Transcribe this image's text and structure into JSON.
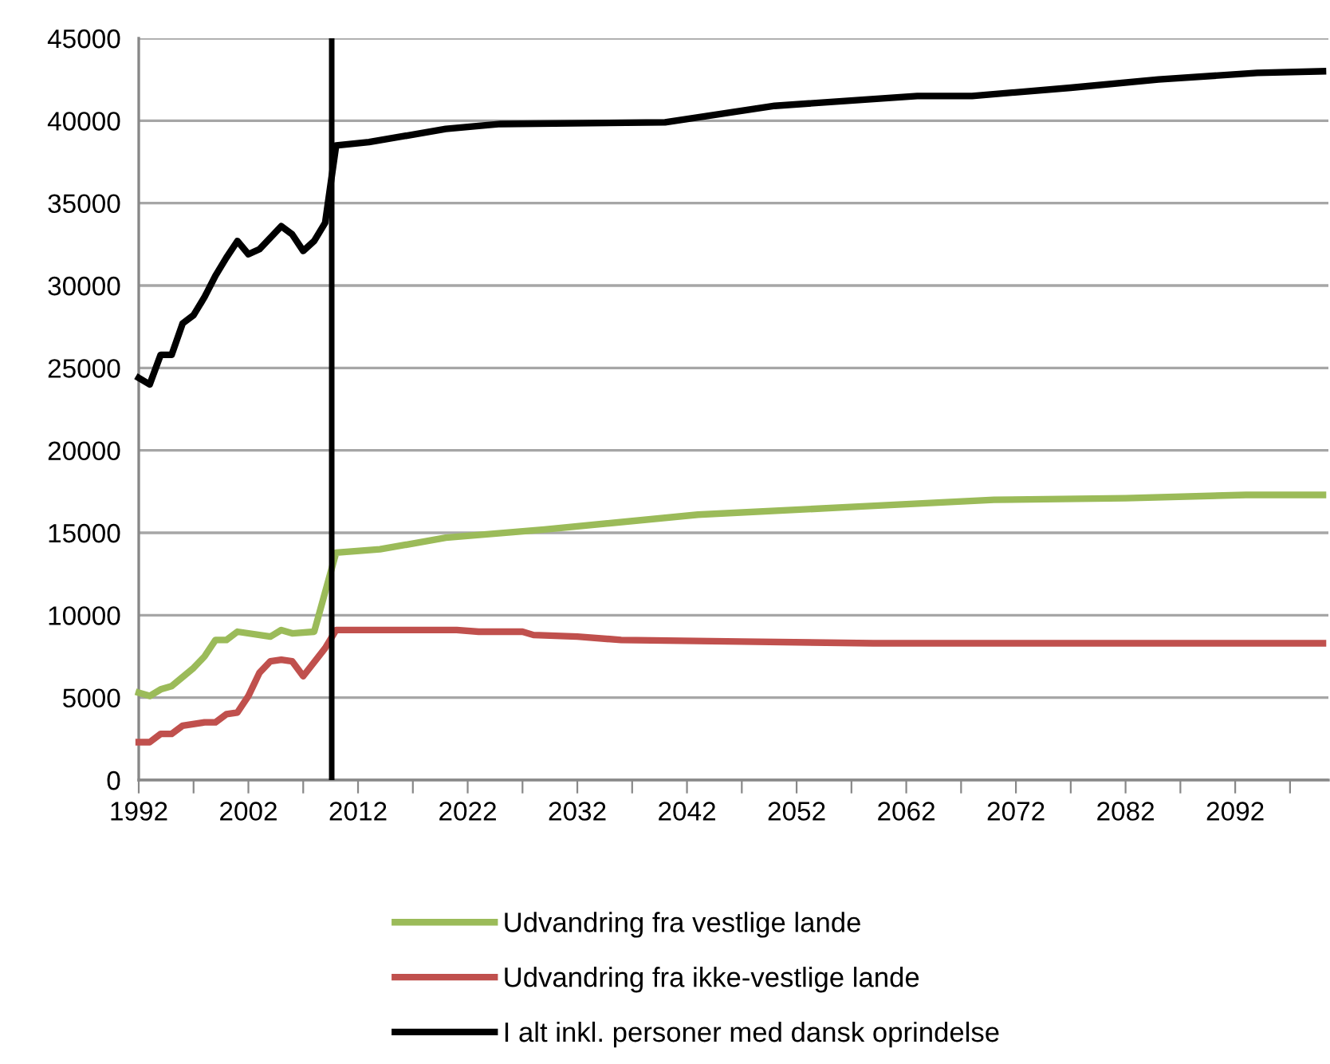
{
  "chart_data": {
    "type": "line",
    "xlim": [
      1992,
      2100.5
    ],
    "xticks": [
      1992,
      {
        "value": 1997,
        "label": null
      },
      2002,
      {
        "value": 2007,
        "label": null
      },
      2012,
      {
        "value": 2017,
        "label": null
      },
      2022,
      {
        "value": 2027,
        "label": null
      },
      2032,
      {
        "value": 2037,
        "label": null
      },
      2042,
      {
        "value": 2047,
        "label": null
      },
      2052,
      {
        "value": 2057,
        "label": null
      },
      2062,
      {
        "value": 2067,
        "label": null
      },
      2072,
      {
        "value": 2077,
        "label": null
      },
      2082,
      {
        "value": 2087,
        "label": null
      },
      2092,
      {
        "value": 2097,
        "label": null
      }
    ],
    "ylim": [
      0,
      45000
    ],
    "yticks": [
      0,
      5000,
      10000,
      15000,
      20000,
      25000,
      30000,
      35000,
      40000,
      45000
    ],
    "grid": "y",
    "legend": "bottom",
    "series": [
      {
        "name": "Udvandring fra vestlige lande",
        "color": "#9bbb59",
        "x": [
          1992,
          1993,
          1994,
          1995,
          1997,
          1998,
          1999,
          2000,
          2001,
          2004,
          2005,
          2006,
          2008,
          2010,
          2014,
          2020,
          2029,
          2043,
          2058,
          2070,
          2082,
          2093,
          2100
        ],
        "values": [
          5300,
          5100,
          5500,
          5700,
          6800,
          7500,
          8500,
          8500,
          9000,
          8700,
          9100,
          8900,
          9000,
          13800,
          14000,
          14700,
          15200,
          16100,
          16600,
          17000,
          17100,
          17300,
          17300
        ]
      },
      {
        "name": "Udvandring fra ikke-vestlige lande",
        "color": "#c0504d",
        "x": [
          1992,
          1993,
          1994,
          1995,
          1996,
          1998,
          1999,
          2000,
          2001,
          2002,
          2003,
          2004,
          2005,
          2006,
          2007,
          2009,
          2010,
          2021,
          2023,
          2027,
          2028,
          2032,
          2036,
          2047,
          2059,
          2100
        ],
        "values": [
          2300,
          2300,
          2800,
          2800,
          3300,
          3500,
          3500,
          4000,
          4100,
          5100,
          6500,
          7200,
          7300,
          7200,
          6300,
          8000,
          9100,
          9100,
          9000,
          9000,
          8800,
          8700,
          8500,
          8400,
          8300,
          8300
        ]
      },
      {
        "name": "I alt inkl. personer med dansk oprindelse",
        "color": "#000000",
        "x": [
          1992,
          1993,
          1994,
          1995,
          1996,
          1997,
          1998,
          1999,
          2000,
          2001,
          2002,
          2003,
          2005,
          2006,
          2007,
          2008,
          2009,
          2010,
          2013,
          2020,
          2025,
          2040,
          2050,
          2063,
          2068,
          2077,
          2085,
          2094,
          2100
        ],
        "values": [
          24400,
          24000,
          25800,
          25800,
          27700,
          28200,
          29300,
          30600,
          31700,
          32700,
          31900,
          32200,
          33600,
          33100,
          32100,
          32700,
          33800,
          38500,
          38700,
          39500,
          39800,
          39900,
          40900,
          41500,
          41500,
          42000,
          42500,
          42900,
          43000
        ]
      }
    ],
    "ref_lines": [
      {
        "axis": "x",
        "value": 2009.6,
        "color": "#000000",
        "line_style": "solid"
      }
    ]
  }
}
